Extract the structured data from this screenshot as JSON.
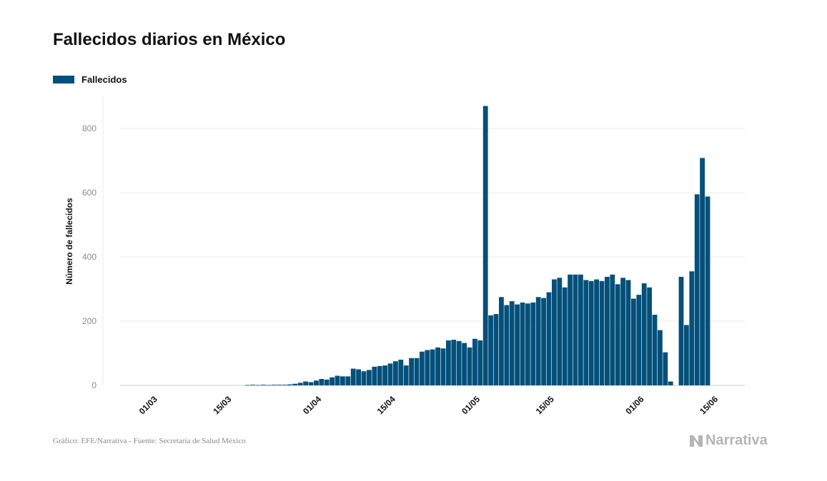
{
  "title": "Fallecidos diarios en México",
  "legend": {
    "label": "Fallecidos"
  },
  "source": "Gráfico: EFE/Narrativa - Fuente: Secretaría de Salud México",
  "brand": "Narrativa",
  "colors": {
    "bar": "#03507a",
    "grid": "#e8e8e8",
    "tick": "#8c8c8c"
  },
  "chart_data": {
    "type": "bar",
    "ylabel": "Número de fallecidos",
    "ylim": [
      0,
      900
    ],
    "yticks": [
      0,
      200,
      400,
      600,
      800
    ],
    "grid": true,
    "legend_position": "top-left",
    "xtick_labels": [
      {
        "label": "01/03",
        "index": 5
      },
      {
        "label": "15/03",
        "index": 19
      },
      {
        "label": "01/04",
        "index": 36
      },
      {
        "label": "15/04",
        "index": 50
      },
      {
        "label": "01/05",
        "index": 66
      },
      {
        "label": "15/05",
        "index": 80
      },
      {
        "label": "01/06",
        "index": 97
      },
      {
        "label": "15/06",
        "index": 111
      }
    ],
    "series": [
      {
        "name": "Fallecidos",
        "values": [
          0,
          0,
          0,
          0,
          0,
          0,
          0,
          0,
          0,
          0,
          0,
          0,
          0,
          0,
          0,
          0,
          0,
          0,
          0,
          0,
          0,
          0,
          1,
          2,
          1,
          2,
          1,
          2,
          2,
          2,
          3,
          5,
          8,
          12,
          10,
          15,
          20,
          18,
          25,
          30,
          28,
          28,
          52,
          50,
          44,
          48,
          58,
          60,
          62,
          68,
          75,
          80,
          62,
          85,
          85,
          105,
          110,
          112,
          118,
          115,
          140,
          142,
          138,
          132,
          118,
          145,
          140,
          870,
          218,
          222,
          275,
          250,
          262,
          252,
          258,
          255,
          258,
          275,
          272,
          290,
          330,
          335,
          305,
          345,
          345,
          345,
          328,
          325,
          330,
          325,
          338,
          345,
          315,
          335,
          328,
          270,
          282,
          318,
          305,
          220,
          172,
          103,
          12,
          0,
          338,
          188,
          355,
          595,
          708,
          588
        ]
      }
    ]
  }
}
